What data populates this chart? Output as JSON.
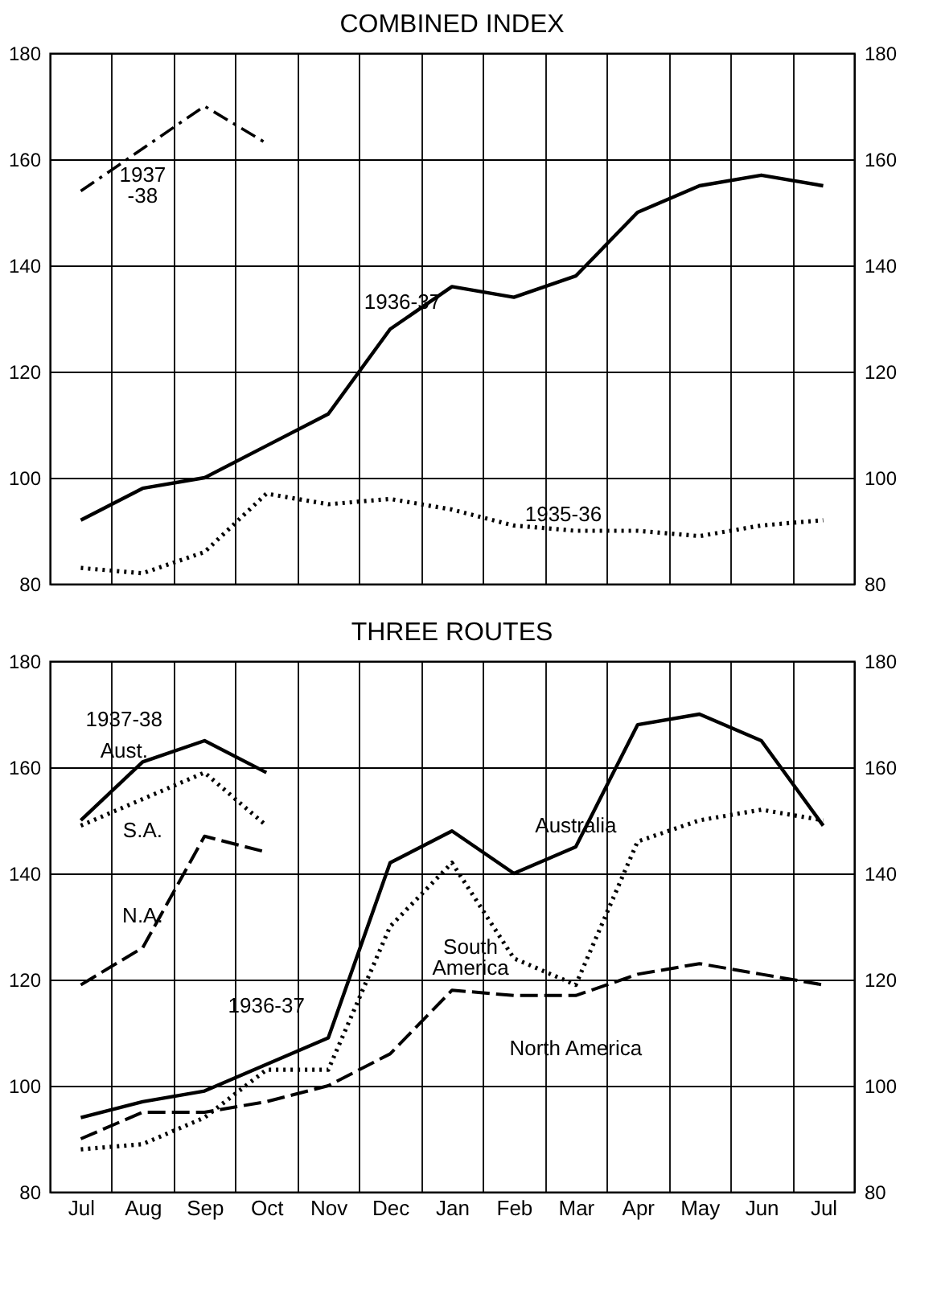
{
  "chart_data": [
    {
      "type": "line",
      "title": "COMBINED INDEX",
      "categories": [
        null,
        null,
        null,
        null,
        null,
        null,
        null,
        null,
        null,
        null,
        null,
        null,
        null
      ],
      "series": [
        {
          "color": "#000000",
          "line_style": "solid",
          "values": [
            92,
            98,
            100,
            106,
            112,
            128,
            136,
            134,
            138,
            150,
            155,
            157,
            155
          ]
        },
        {
          "color": "#000000",
          "line_style": "dotted",
          "values": [
            83,
            82,
            86,
            97,
            95,
            96,
            94,
            91,
            90,
            90,
            89,
            91,
            92
          ]
        },
        {
          "color": "#000000",
          "line_style": "dashdot",
          "values": [
            154,
            162,
            170,
            163,
            null,
            null,
            null,
            null,
            null,
            null,
            null,
            null,
            null
          ]
        }
      ],
      "ylim": [
        80,
        180
      ],
      "yticks": [
        80,
        100,
        120,
        140,
        160,
        180
      ],
      "y2lim": [
        80,
        180
      ],
      "y2ticks": [
        80,
        100,
        120,
        140,
        160,
        180
      ],
      "grid": true,
      "tick_labels": "y",
      "annotations": [
        "1937\n-38",
        "1936-37",
        "1935-36"
      ]
    },
    {
      "type": "line",
      "title": "THREE ROUTES",
      "categories": [
        "Jul",
        "Aug",
        "Sep",
        "Oct",
        "Nov",
        "Dec",
        "Jan",
        "Feb",
        "Mar",
        "Apr",
        "May",
        "Jun",
        "Jul"
      ],
      "series": [
        {
          "color": "#000000",
          "line_style": "solid",
          "values": [
            94,
            97,
            99,
            104,
            109,
            142,
            148,
            140,
            145,
            168,
            170,
            165,
            149
          ]
        },
        {
          "color": "#000000",
          "line_style": "dotted",
          "values": [
            88,
            89,
            94,
            103,
            103,
            130,
            142,
            124,
            119,
            146,
            150,
            152,
            150
          ]
        },
        {
          "color": "#000000",
          "line_style": "dashed",
          "values": [
            90,
            95,
            95,
            97,
            100,
            106,
            118,
            117,
            117,
            121,
            123,
            121,
            119
          ]
        },
        {
          "color": "#000000",
          "line_style": "solid",
          "values": [
            150,
            161,
            165,
            159,
            null,
            null,
            null,
            null,
            null,
            null,
            null,
            null,
            null
          ]
        },
        {
          "color": "#000000",
          "line_style": "dotted",
          "values": [
            149,
            154,
            159,
            149,
            null,
            null,
            null,
            null,
            null,
            null,
            null,
            null,
            null
          ]
        },
        {
          "color": "#000000",
          "line_style": "dashed",
          "values": [
            119,
            126,
            147,
            144,
            null,
            null,
            null,
            null,
            null,
            null,
            null,
            null,
            null
          ]
        }
      ],
      "ylim": [
        80,
        180
      ],
      "yticks": [
        80,
        100,
        120,
        140,
        160,
        180
      ],
      "y2lim": [
        80,
        180
      ],
      "y2ticks": [
        80,
        100,
        120,
        140,
        160,
        180
      ],
      "grid": true,
      "annotations": [
        "1937-38",
        "Aust.",
        "S.A.",
        "N.A.",
        "1936-37",
        "Australia",
        "South\nAmerica",
        "North America"
      ]
    }
  ]
}
